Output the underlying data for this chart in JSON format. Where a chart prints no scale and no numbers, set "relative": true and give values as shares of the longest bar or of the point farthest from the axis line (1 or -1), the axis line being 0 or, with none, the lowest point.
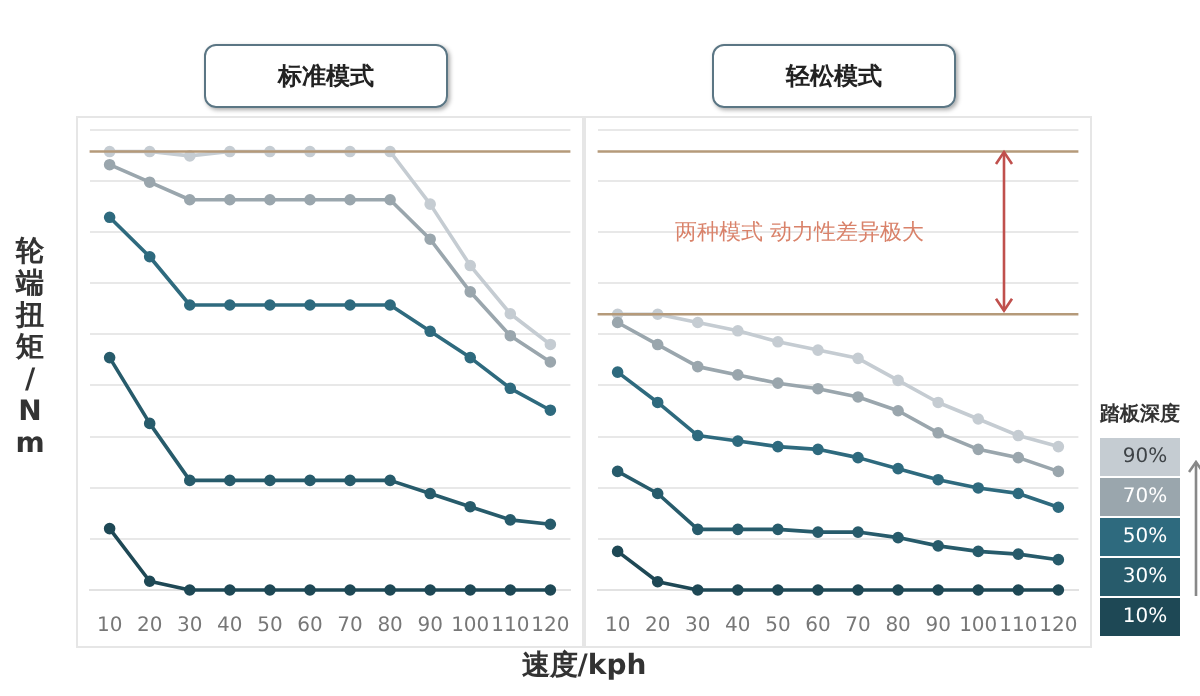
{
  "chart_data": [
    {
      "type": "line",
      "title": "标准模式",
      "ylabel": "轮端扭矩/Nm",
      "xlabel": "速度/kph",
      "relative": true,
      "grid": "y",
      "marker": "circle",
      "line_style": "solid",
      "categories": [
        "10",
        "20",
        "30",
        "40",
        "50",
        "60",
        "70",
        "80",
        "90",
        "100",
        "110",
        "120"
      ],
      "series": [
        {
          "color": "#c5ccd2",
          "values": [
            1.0,
            1.0,
            0.99,
            1.0,
            1.0,
            1.0,
            1.0,
            1.0,
            0.88,
            0.74,
            0.63,
            0.56
          ]
        },
        {
          "color": "#9aa6ad",
          "values": [
            0.97,
            0.93,
            0.89,
            0.89,
            0.89,
            0.89,
            0.89,
            0.89,
            0.8,
            0.68,
            0.58,
            0.52
          ]
        },
        {
          "color": "#2e6a7e",
          "values": [
            0.85,
            0.76,
            0.65,
            0.65,
            0.65,
            0.65,
            0.65,
            0.65,
            0.59,
            0.53,
            0.46,
            0.41
          ]
        },
        {
          "color": "#275b6b",
          "values": [
            0.53,
            0.38,
            0.25,
            0.25,
            0.25,
            0.25,
            0.25,
            0.25,
            0.22,
            0.19,
            0.16,
            0.15
          ]
        },
        {
          "color": "#1e4855",
          "values": [
            0.14,
            0.02,
            0,
            0,
            0,
            0,
            0,
            0,
            0,
            0,
            0,
            0
          ]
        }
      ],
      "ref_lines": [
        {
          "axis": "y",
          "value": 1.0,
          "color": "#b59a7a"
        }
      ]
    },
    {
      "type": "line",
      "title": "轻松模式",
      "relative": true,
      "grid": "y",
      "marker": "circle",
      "line_style": "solid",
      "legend": "right",
      "legend_title": "踏板深度",
      "categories": [
        "10",
        "20",
        "30",
        "40",
        "50",
        "60",
        "70",
        "80",
        "90",
        "100",
        "110",
        "120"
      ],
      "series": [
        {
          "name": "90%",
          "color": "#c5ccd2",
          "values": [
            1.0,
            1.0,
            0.97,
            0.94,
            0.9,
            0.87,
            0.84,
            0.76,
            0.68,
            0.62,
            0.56,
            0.52
          ]
        },
        {
          "name": "70%",
          "color": "#9aa6ad",
          "values": [
            0.97,
            0.89,
            0.81,
            0.78,
            0.75,
            0.73,
            0.7,
            0.65,
            0.57,
            0.51,
            0.48,
            0.43
          ]
        },
        {
          "name": "50%",
          "color": "#2e6a7e",
          "values": [
            0.79,
            0.68,
            0.56,
            0.54,
            0.52,
            0.51,
            0.48,
            0.44,
            0.4,
            0.37,
            0.35,
            0.3
          ]
        },
        {
          "name": "30%",
          "color": "#275b6b",
          "values": [
            0.43,
            0.35,
            0.22,
            0.22,
            0.22,
            0.21,
            0.21,
            0.19,
            0.16,
            0.14,
            0.13,
            0.11
          ]
        },
        {
          "name": "10%",
          "color": "#1e4855",
          "values": [
            0.14,
            0.03,
            0,
            0,
            0,
            0,
            0,
            0,
            0,
            0,
            0,
            0
          ]
        }
      ],
      "ref_lines": [
        {
          "axis": "y",
          "value": 1.59,
          "color": "#b59a7a"
        },
        {
          "axis": "y",
          "value": 1.0,
          "color": "#b59a7a"
        }
      ],
      "annotations": [
        "两种模式 动力性差异极大"
      ]
    }
  ]
}
